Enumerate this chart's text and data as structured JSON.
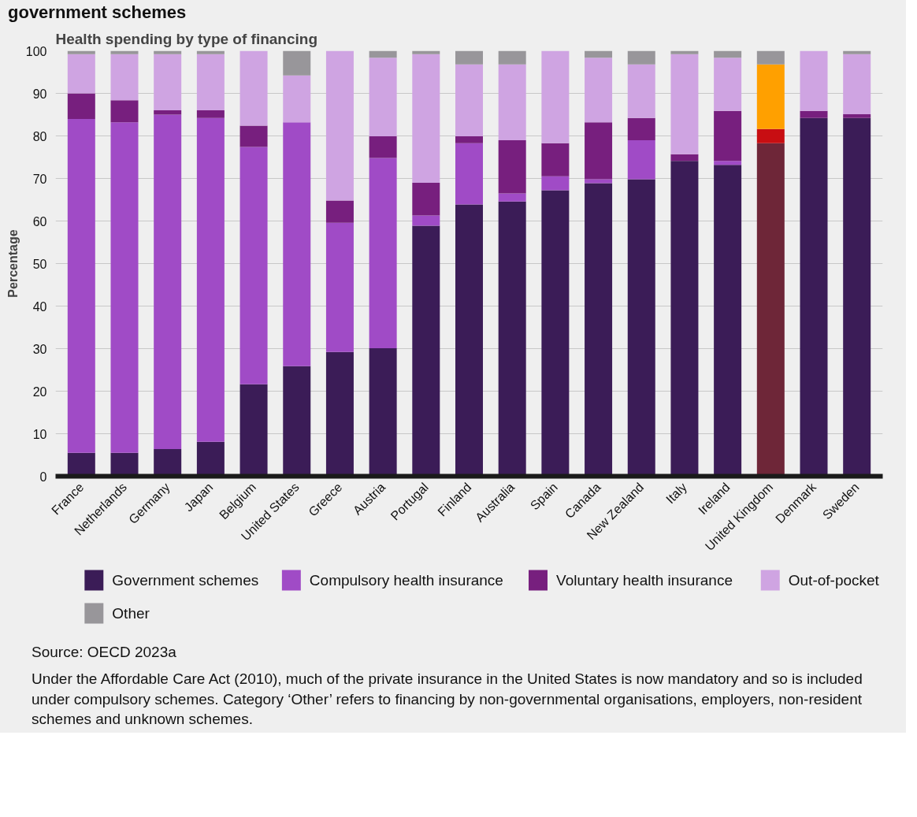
{
  "chart_data": {
    "type": "bar",
    "stacked": true,
    "title": "government schemes",
    "subtitle": "Health spending by type of financing",
    "ylabel": "Percentage",
    "categories": [
      "France",
      "Netherlands",
      "Germany",
      "Japan",
      "Belgium",
      "United States",
      "Greece",
      "Austria",
      "Portugal",
      "Finland",
      "Australia",
      "Spain",
      "Canada",
      "New Zealand",
      "Italy",
      "Ireland",
      "United Kingdom",
      "Denmark",
      "Sweden"
    ],
    "series": [
      {
        "name": "Government schemes",
        "color": "#3b1c57",
        "colors": [
          "#3b1c57",
          "#3b1c57",
          "#3b1c57",
          "#3b1c57",
          "#3b1c57",
          "#3b1c57",
          "#3b1c57",
          "#3b1c57",
          "#3b1c57",
          "#3b1c57",
          "#3b1c57",
          "#3b1c57",
          "#3b1c57",
          "#3b1c57",
          "#3b1c57",
          "#3b1c57",
          "#6e2638",
          "#3b1c57",
          "#3b1c57"
        ],
        "values": [
          5.5,
          5.5,
          6.4,
          8.1,
          21.6,
          25.9,
          29.2,
          30.1,
          58.9,
          63.9,
          64.6,
          67.2,
          68.9,
          69.8,
          74.1,
          73.2,
          78.3,
          84.2,
          84.2
        ]
      },
      {
        "name": "Compulsory health insurance",
        "color": "#a04bc6",
        "values": [
          78.5,
          77.7,
          78.6,
          76.1,
          55.8,
          57.3,
          30.4,
          44.7,
          2.4,
          14.4,
          1.9,
          3.3,
          0.9,
          9.2,
          0,
          0.9,
          0,
          0,
          0
        ]
      },
      {
        "name": "Voluntary health insurance",
        "color": "#771f7e",
        "colors": [
          "#771f7e",
          "#771f7e",
          "#771f7e",
          "#771f7e",
          "#771f7e",
          "#771f7e",
          "#771f7e",
          "#771f7e",
          "#771f7e",
          "#771f7e",
          "#771f7e",
          "#771f7e",
          "#771f7e",
          "#771f7e",
          "#771f7e",
          "#771f7e",
          "#c80e12",
          "#771f7e",
          "#771f7e"
        ],
        "values": [
          6,
          5.2,
          1,
          1.8,
          5,
          0,
          5.2,
          5.1,
          7.7,
          1.6,
          12.5,
          7.8,
          13.4,
          5.2,
          1.6,
          11.8,
          3.3,
          1.7,
          0.9
        ]
      },
      {
        "name": "Out-of-pocket",
        "color": "#cfa4e2",
        "colors": [
          "#cfa4e2",
          "#cfa4e2",
          "#cfa4e2",
          "#cfa4e2",
          "#cfa4e2",
          "#cfa4e2",
          "#cfa4e2",
          "#cfa4e2",
          "#cfa4e2",
          "#cfa4e2",
          "#cfa4e2",
          "#cfa4e2",
          "#cfa4e2",
          "#cfa4e2",
          "#cfa4e2",
          "#cfa4e2",
          "#ffa000",
          "#cfa4e2",
          "#cfa4e2"
        ],
        "values": [
          9.2,
          10.8,
          13.2,
          13.2,
          17.6,
          11,
          35.2,
          18.5,
          30.2,
          16.9,
          17.8,
          21.7,
          15.2,
          12.6,
          23.5,
          12.5,
          15.2,
          14.1,
          14.1
        ]
      },
      {
        "name": "Other",
        "color": "#98969a",
        "values": [
          0.8,
          0.8,
          0.8,
          0.8,
          0,
          5.8,
          0,
          1.6,
          0.8,
          3.2,
          3.2,
          0,
          1.6,
          3.2,
          0.8,
          1.6,
          3.2,
          0,
          0.8
        ]
      }
    ],
    "ylim": [
      0,
      100
    ],
    "yticks": [
      0,
      10,
      20,
      30,
      40,
      50,
      60,
      70,
      80,
      90,
      100
    ],
    "grid": "y",
    "legend": "bottom",
    "annotations": [
      "Source: OECD 2023a",
      "Under the Affordable Care Act (2010), much of the private insurance in the United States is now mandatory and so is included under compulsory schemes. Category ‘Other’ refers to financing by non-governmental organisations, employers, non-resident schemes and unknown schemes."
    ]
  }
}
